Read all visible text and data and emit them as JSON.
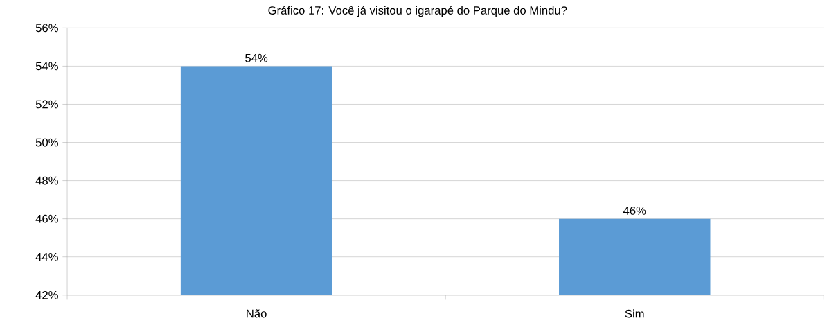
{
  "chart_data": {
    "type": "bar",
    "title": "Gráfico 17: Você já visitou o igarapé do Parque do Mindu?",
    "categories": [
      "Não",
      "Sim"
    ],
    "values": [
      54,
      46
    ],
    "value_labels": [
      "54%",
      "46%"
    ],
    "color": "#5b9bd5",
    "ylim": [
      42,
      56
    ],
    "yticks": [
      {
        "value": 42,
        "label": "42%"
      },
      {
        "value": 44,
        "label": "44%"
      },
      {
        "value": 46,
        "label": "46%"
      },
      {
        "value": 48,
        "label": "48%"
      },
      {
        "value": 50,
        "label": "50%"
      },
      {
        "value": 52,
        "label": "52%"
      },
      {
        "value": 54,
        "label": "54%"
      },
      {
        "value": 56,
        "label": "56%"
      }
    ],
    "grid": "y"
  }
}
